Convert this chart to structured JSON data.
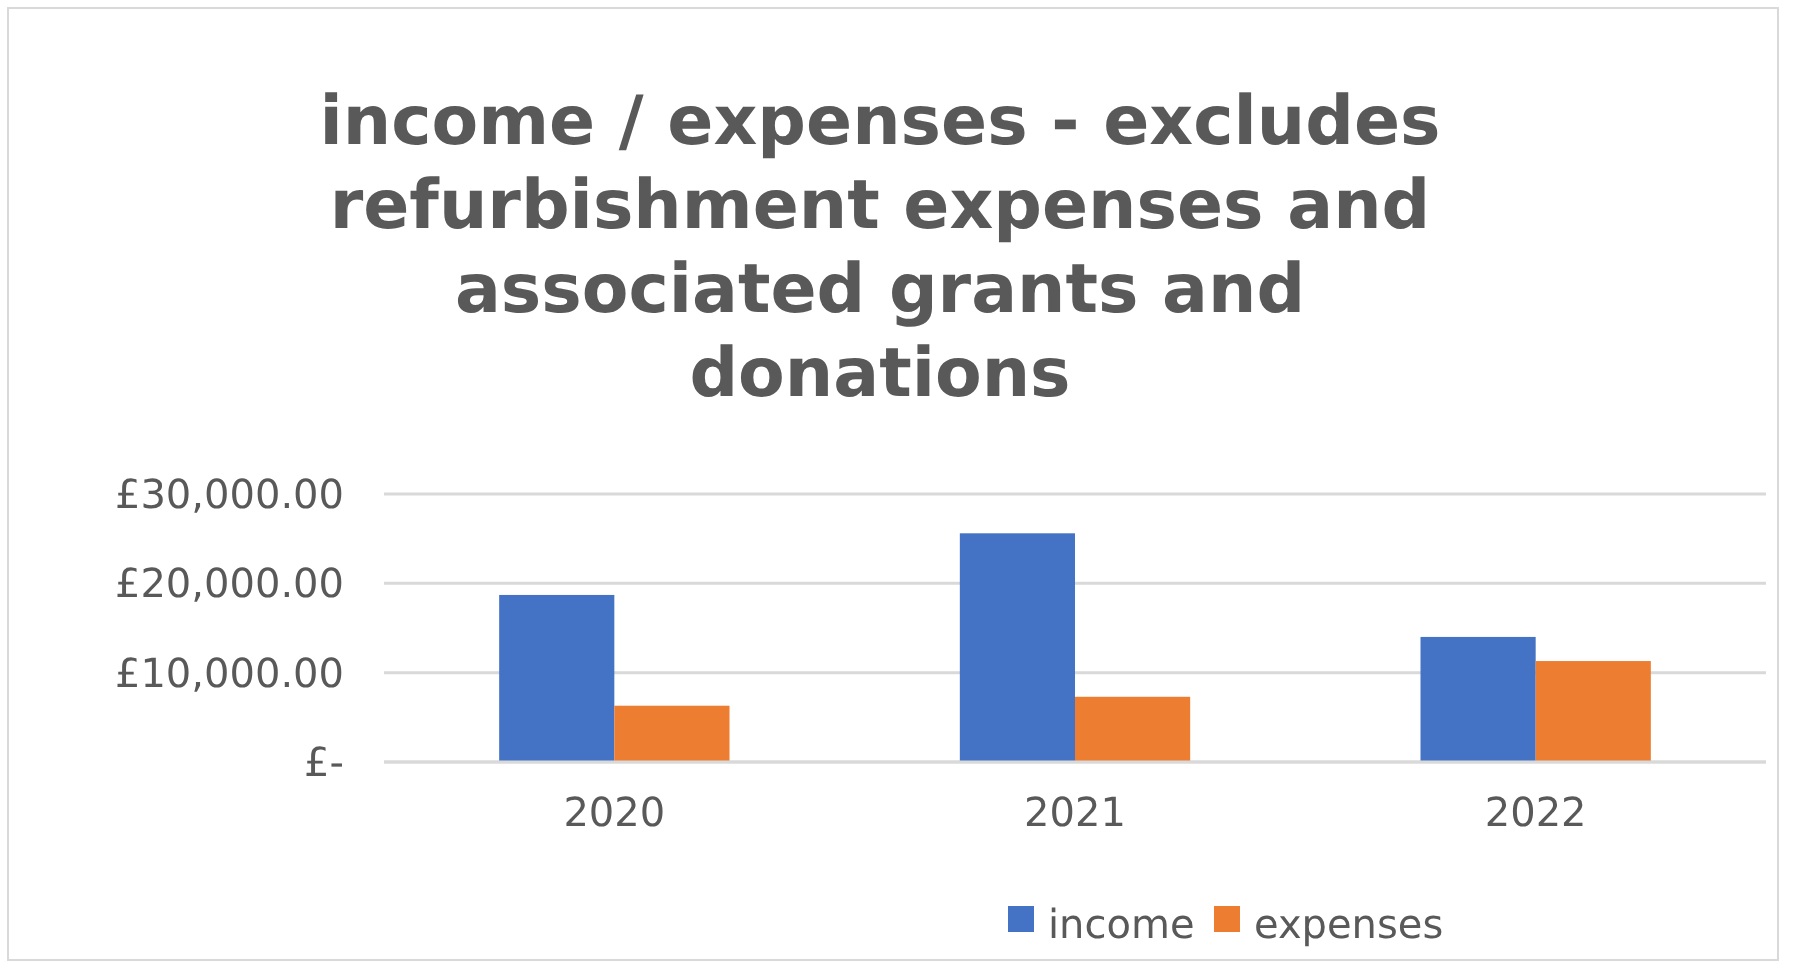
{
  "chart_data": {
    "type": "bar",
    "title": "income / expenses - excludes refurbishment expenses and associated grants and donations",
    "categories": [
      "2020",
      "2021",
      "2022"
    ],
    "series": [
      {
        "name": "income",
        "color": "#4472c4",
        "values": [
          18700,
          25600,
          14000
        ]
      },
      {
        "name": "expenses",
        "color": "#ed7d31",
        "values": [
          6300,
          7300,
          11300
        ]
      }
    ],
    "ylim": [
      0,
      30000
    ],
    "yticks": [
      {
        "value": 0,
        "label": "£-"
      },
      {
        "value": 10000,
        "label": "£10,000.00"
      },
      {
        "value": 20000,
        "label": "£20,000.00"
      },
      {
        "value": 30000,
        "label": "£30,000.00"
      }
    ],
    "grid": "y",
    "legend": "bottom"
  }
}
